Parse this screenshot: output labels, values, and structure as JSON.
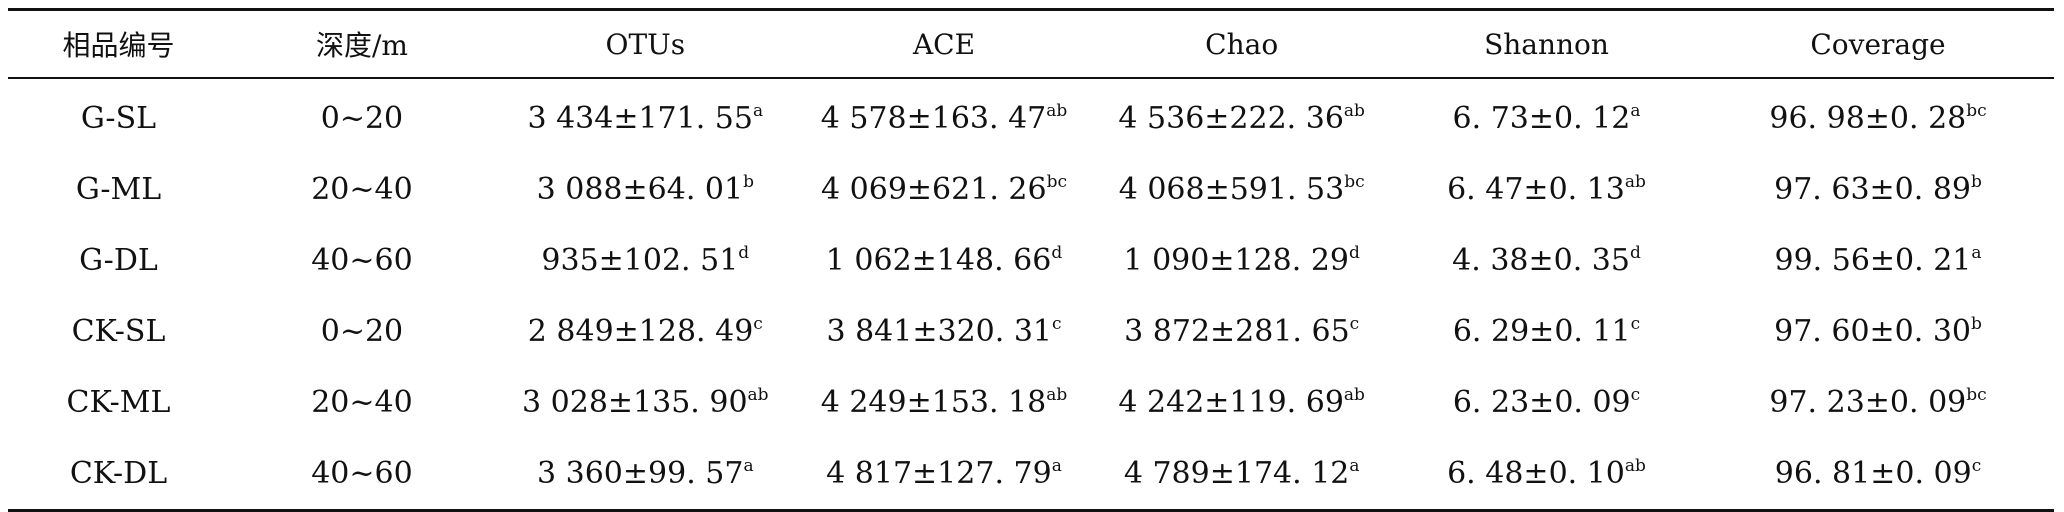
{
  "table": {
    "headers": [
      "相品编号",
      "深度/m",
      "OTUs",
      "ACE",
      "Chao",
      "Shannon",
      "Coverage"
    ],
    "rows": [
      {
        "sample": "G-SL",
        "depth": "0~20",
        "cells": [
          {
            "value": "3 434±171. 55",
            "sup": "a"
          },
          {
            "value": "4 578±163. 47",
            "sup": "ab"
          },
          {
            "value": "4 536±222. 36",
            "sup": "ab"
          },
          {
            "value": "6. 73±0. 12",
            "sup": "a"
          },
          {
            "value": "96. 98±0. 28",
            "sup": "bc"
          }
        ]
      },
      {
        "sample": "G-ML",
        "depth": "20~40",
        "cells": [
          {
            "value": "3 088±64. 01",
            "sup": "b"
          },
          {
            "value": "4 069±621. 26",
            "sup": "bc"
          },
          {
            "value": "4 068±591. 53",
            "sup": "bc"
          },
          {
            "value": "6. 47±0. 13",
            "sup": "ab"
          },
          {
            "value": "97. 63±0. 89",
            "sup": "b"
          }
        ]
      },
      {
        "sample": "G-DL",
        "depth": "40~60",
        "cells": [
          {
            "value": "935±102. 51",
            "sup": "d"
          },
          {
            "value": "1 062±148. 66",
            "sup": "d"
          },
          {
            "value": "1 090±128. 29",
            "sup": "d"
          },
          {
            "value": "4. 38±0. 35",
            "sup": "d"
          },
          {
            "value": "99. 56±0. 21",
            "sup": "a"
          }
        ]
      },
      {
        "sample": "CK-SL",
        "depth": "0~20",
        "cells": [
          {
            "value": "2 849±128. 49",
            "sup": "c"
          },
          {
            "value": "3 841±320. 31",
            "sup": "c"
          },
          {
            "value": "3 872±281. 65",
            "sup": "c"
          },
          {
            "value": "6. 29±0. 11",
            "sup": "c"
          },
          {
            "value": "97. 60±0. 30",
            "sup": "b"
          }
        ]
      },
      {
        "sample": "CK-ML",
        "depth": "20~40",
        "cells": [
          {
            "value": "3 028±135. 90",
            "sup": "ab"
          },
          {
            "value": "4 249±153. 18",
            "sup": "ab"
          },
          {
            "value": "4 242±119. 69",
            "sup": "ab"
          },
          {
            "value": "6. 23±0. 09",
            "sup": "c"
          },
          {
            "value": "97. 23±0. 09",
            "sup": "bc"
          }
        ]
      },
      {
        "sample": "CK-DL",
        "depth": "40~60",
        "cells": [
          {
            "value": "3 360±99. 57",
            "sup": "a"
          },
          {
            "value": "4 817±127. 79",
            "sup": "a"
          },
          {
            "value": "4 789±174. 12",
            "sup": "a"
          },
          {
            "value": "6. 48±0. 10",
            "sup": "ab"
          },
          {
            "value": "96. 81±0. 09",
            "sup": "c"
          }
        ]
      }
    ]
  }
}
